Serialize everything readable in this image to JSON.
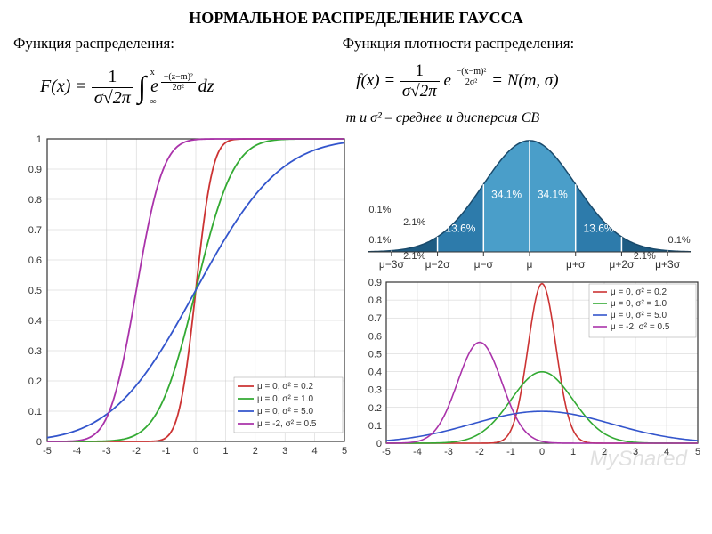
{
  "title": "НОРМАЛЬНОЕ РАСПРЕДЕЛЕНИЕ ГАУССА",
  "subtitle_left": "Функция распределения:",
  "subtitle_right": "Функция  плотности распределения:",
  "note_right": "m и σ² – среднее и дисперсия СВ",
  "watermark": "MyShared",
  "formula_cdf": {
    "lhs": "F(x) =",
    "frac_num": "1",
    "frac_den": "σ√2π",
    "int_upper": "x",
    "int_lower": "−∞",
    "exp_label": "e",
    "exp_num": "−(z−m)²",
    "exp_den": "2σ²",
    "tail": "dz"
  },
  "formula_pdf": {
    "lhs": "f(x) =",
    "frac_num": "1",
    "frac_den": "σ√2π",
    "exp_label": "e",
    "exp_num": "−(x−m)²",
    "exp_den": "2σ²",
    "tail": "= N(m, σ)"
  },
  "cdf_chart": {
    "xlim": [
      -5,
      5
    ],
    "ylim": [
      0,
      1
    ],
    "xticks": [
      -5,
      -4,
      -3,
      -2,
      -1,
      0,
      1,
      2,
      3,
      4,
      5
    ],
    "yticks": [
      0,
      0.1,
      0.2,
      0.3,
      0.4,
      0.5,
      0.6,
      0.7,
      0.8,
      0.9,
      1
    ],
    "grid_color": "#cccccc",
    "border_color": "#333333",
    "series": [
      {
        "color": "#cc3333",
        "mu": 0,
        "sigma2": 0.2,
        "label": "μ = 0,  σ² = 0.2"
      },
      {
        "color": "#33aa33",
        "mu": 0,
        "sigma2": 1.0,
        "label": "μ = 0,  σ² = 1.0"
      },
      {
        "color": "#3355cc",
        "mu": 0,
        "sigma2": 5.0,
        "label": "μ = 0,  σ² = 5.0"
      },
      {
        "color": "#aa33aa",
        "mu": -2,
        "sigma2": 0.5,
        "label": "μ = -2, σ² = 0.5"
      }
    ],
    "legend_pos": "bottom-right"
  },
  "pdf_chart": {
    "xlim": [
      -5,
      5
    ],
    "ylim": [
      0,
      0.9
    ],
    "xticks": [
      -5,
      -4,
      -3,
      -2,
      -1,
      0,
      1,
      2,
      3,
      4,
      5
    ],
    "yticks": [
      0,
      0.1,
      0.2,
      0.3,
      0.4,
      0.5,
      0.6,
      0.7,
      0.8,
      0.9
    ],
    "grid_color": "#cccccc",
    "border_color": "#333333",
    "series": [
      {
        "color": "#cc3333",
        "mu": 0,
        "sigma2": 0.2,
        "label": "μ = 0,  σ² = 0.2"
      },
      {
        "color": "#33aa33",
        "mu": 0,
        "sigma2": 1.0,
        "label": "μ = 0,  σ² = 1.0"
      },
      {
        "color": "#3355cc",
        "mu": 0,
        "sigma2": 5.0,
        "label": "μ = 0,  σ² = 5.0"
      },
      {
        "color": "#aa33aa",
        "mu": -2,
        "sigma2": 0.5,
        "label": "μ = -2, σ² = 0.5"
      }
    ],
    "legend_pos": "top-right"
  },
  "bell_chart": {
    "fill_colors": [
      "#1d5b82",
      "#2d7bab",
      "#4a9ec9",
      "#4a9ec9",
      "#2d7bab",
      "#1d5b82"
    ],
    "outer_color": "#1d5b82",
    "line_color": "#1a4a6b",
    "bg_color": "#ffffff",
    "sep_color": "#ffffff",
    "pct_inner": [
      "13.6%",
      "34.1%",
      "34.1%",
      "13.6%"
    ],
    "pct_outer_left": [
      "0.1%",
      "2.1%"
    ],
    "pct_outer_right": [
      "2.1%",
      "0.1%"
    ],
    "axis_labels": [
      "μ−3σ",
      "μ−2σ",
      "μ−σ",
      "μ",
      "μ+σ",
      "μ+2σ",
      "μ+3σ"
    ]
  }
}
